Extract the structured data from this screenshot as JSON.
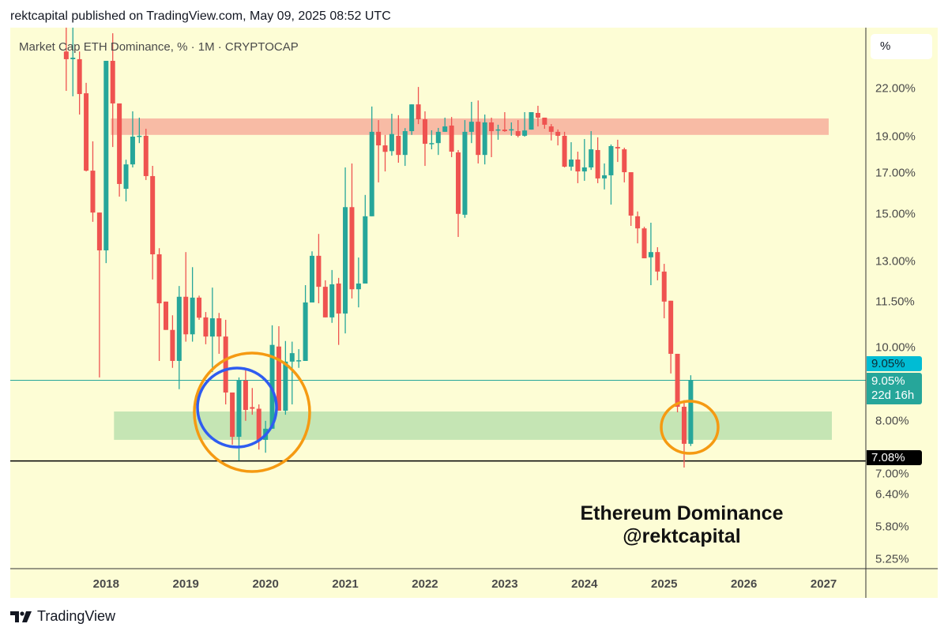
{
  "header": {
    "publish_line": "rektcapital published on TradingView.com, May 09, 2025 08:52 UTC"
  },
  "legend": {
    "symbol_title": "Market Cap ETH Dominance, % · 1M · CRYPTOCAP"
  },
  "scale_button": {
    "label": "%"
  },
  "watermark": {
    "line1": "Ethereum Dominance",
    "line2": "@rektcapital"
  },
  "footer": {
    "brand": "TradingView",
    "logo_icon": "tradingview-logo-icon"
  },
  "price_tags": {
    "last_price": "9.05%",
    "close_price": "9.05%",
    "countdown": "22d 16h",
    "support_level": "7.08%"
  },
  "colors": {
    "up": "#26a69a",
    "down": "#ef5350",
    "background": "#fdfdd5",
    "resistance_zone": "#f8bba5",
    "support_zone": "#c5e5b4",
    "circle_orange": "#f59a12",
    "circle_blue": "#2f5cf0",
    "last_price_line": "#26a69a",
    "last_price_tag": "#00bcd4"
  },
  "chart_data": {
    "type": "candlestick",
    "title": "Market Cap ETH Dominance, % · 1M · CRYPTOCAP",
    "y_scale": "log",
    "ylim": [
      5.1,
      26.5
    ],
    "y_ticks": [
      "22.00%",
      "19.00%",
      "17.00%",
      "15.00%",
      "13.00%",
      "11.50%",
      "10.00%",
      "8.00%",
      "7.00%",
      "6.40%",
      "5.80%",
      "5.25%"
    ],
    "x_ticks": [
      "2018",
      "2019",
      "2020",
      "2021",
      "2022",
      "2023",
      "2024",
      "2025",
      "2026",
      "2027"
    ],
    "x_range": [
      "2017-07",
      "2027-06"
    ],
    "grid": false,
    "start_month": "2017-07",
    "ohlc_columns": [
      "open",
      "high",
      "low",
      "close"
    ],
    "candles": [
      [
        24.62,
        26.8,
        21.84,
        24.05
      ],
      [
        24.05,
        26.5,
        21.48,
        24.16
      ],
      [
        24.05,
        24.62,
        20.32,
        21.63
      ],
      [
        21.68,
        22.38,
        17.09,
        17.13
      ],
      [
        17.13,
        18.73,
        14.66,
        15.08
      ],
      [
        15.08,
        15.08,
        9.13,
        13.44
      ],
      [
        13.44,
        23.93,
        12.93,
        23.93
      ],
      [
        23.93,
        26.02,
        18.41,
        21.02
      ],
      [
        21.02,
        21.02,
        15.83,
        16.45
      ],
      [
        16.21,
        17.71,
        15.6,
        17.46
      ],
      [
        17.46,
        20.52,
        17.3,
        19.0
      ],
      [
        18.98,
        20.13,
        18.63,
        19.05
      ],
      [
        19.05,
        19.46,
        16.65,
        16.85
      ],
      [
        16.85,
        17.38,
        12.3,
        13.28
      ],
      [
        13.28,
        13.53,
        9.6,
        11.44
      ],
      [
        11.5,
        11.5,
        10.55,
        10.55
      ],
      [
        10.55,
        11.03,
        9.4,
        9.6
      ],
      [
        9.6,
        12.06,
        8.81,
        11.67
      ],
      [
        11.67,
        13.37,
        10.18,
        10.41
      ],
      [
        10.41,
        12.77,
        10.18,
        11.64
      ],
      [
        11.64,
        11.71,
        10.88,
        10.95
      ],
      [
        10.96,
        11.14,
        10.1,
        10.34
      ],
      [
        10.34,
        12.0,
        9.28,
        10.93
      ],
      [
        10.93,
        11.11,
        9.81,
        10.34
      ],
      [
        10.34,
        10.88,
        8.41,
        8.72
      ],
      [
        8.72,
        8.72,
        7.44,
        7.62
      ],
      [
        7.62,
        9.13,
        7.09,
        9.04
      ],
      [
        9.04,
        9.38,
        8.0,
        8.27
      ],
      [
        8.34,
        8.84,
        8.15,
        8.3
      ],
      [
        8.3,
        8.41,
        7.33,
        7.55
      ],
      [
        7.55,
        8.0,
        7.26,
        7.81
      ],
      [
        7.81,
        10.7,
        7.81,
        10.08
      ],
      [
        10.03,
        10.67,
        8.25,
        8.25
      ],
      [
        8.25,
        10.2,
        8.15,
        9.58
      ],
      [
        9.58,
        10.18,
        8.41,
        9.83
      ],
      [
        9.6,
        9.95,
        9.4,
        9.62
      ],
      [
        9.6,
        12.09,
        9.6,
        11.47
      ],
      [
        11.47,
        13.4,
        11.47,
        13.22
      ],
      [
        13.22,
        14.13,
        11.44,
        12.03
      ],
      [
        12.03,
        12.27,
        10.96,
        10.96
      ],
      [
        10.96,
        12.66,
        10.78,
        12.12
      ],
      [
        12.15,
        12.36,
        10.08,
        11.09
      ],
      [
        11.09,
        17.3,
        10.44,
        15.33
      ],
      [
        15.33,
        17.51,
        11.61,
        11.94
      ],
      [
        11.94,
        13.15,
        11.3,
        12.15
      ],
      [
        12.15,
        15.91,
        12.15,
        14.91
      ],
      [
        14.91,
        20.82,
        14.91,
        19.28
      ],
      [
        19.28,
        19.98,
        16.53,
        18.5
      ],
      [
        18.5,
        19.1,
        17.09,
        18.14
      ],
      [
        18.18,
        20.37,
        17.93,
        19.15
      ],
      [
        19.05,
        20.28,
        17.55,
        17.97
      ],
      [
        17.97,
        19.5,
        17.38,
        19.32
      ],
      [
        19.32,
        20.96,
        19.1,
        20.96
      ],
      [
        20.96,
        22.1,
        19.74,
        20.03
      ],
      [
        20.03,
        20.52,
        17.38,
        18.59
      ],
      [
        18.59,
        19.37,
        18.28,
        18.63
      ],
      [
        18.63,
        19.51,
        17.97,
        19.28
      ],
      [
        19.28,
        20.13,
        19.28,
        19.6
      ],
      [
        19.65,
        20.17,
        17.85,
        18.15
      ],
      [
        18.11,
        18.24,
        14.0,
        15.02
      ],
      [
        14.98,
        19.98,
        14.84,
        19.28
      ],
      [
        19.28,
        21.12,
        18.63,
        19.88
      ],
      [
        19.88,
        21.21,
        17.51,
        17.97
      ],
      [
        17.97,
        20.32,
        17.46,
        19.84
      ],
      [
        19.84,
        20.13,
        17.85,
        19.32
      ],
      [
        19.38,
        19.7,
        18.82,
        19.42
      ],
      [
        19.41,
        20.47,
        19.28,
        19.32
      ],
      [
        19.38,
        19.84,
        19.05,
        19.43
      ],
      [
        19.32,
        19.98,
        18.96,
        19.05
      ],
      [
        19.05,
        20.47,
        19.0,
        19.36
      ],
      [
        19.41,
        20.47,
        19.41,
        20.47
      ],
      [
        20.42,
        20.87,
        19.6,
        20.13
      ],
      [
        20.13,
        20.13,
        19.46,
        19.7
      ],
      [
        19.6,
        19.74,
        18.78,
        19.28
      ],
      [
        19.28,
        19.42,
        18.5,
        19.05
      ],
      [
        19.05,
        19.28,
        17.3,
        17.34
      ],
      [
        17.34,
        18.68,
        17.13,
        17.72
      ],
      [
        17.72,
        18.15,
        16.49,
        17.09
      ],
      [
        17.09,
        18.86,
        16.61,
        17.3
      ],
      [
        17.3,
        19.32,
        17.17,
        18.28
      ],
      [
        18.24,
        18.96,
        16.49,
        16.73
      ],
      [
        16.73,
        17.51,
        16.18,
        16.89
      ],
      [
        16.89,
        18.55,
        15.45,
        18.46
      ],
      [
        18.41,
        18.82,
        17.59,
        18.33
      ],
      [
        18.28,
        18.37,
        16.53,
        17.05
      ],
      [
        17.05,
        17.05,
        14.48,
        14.94
      ],
      [
        14.91,
        15.13,
        13.73,
        14.37
      ],
      [
        14.37,
        14.44,
        13.12,
        13.12
      ],
      [
        13.16,
        14.62,
        12.09,
        13.37
      ],
      [
        13.37,
        13.57,
        12.27,
        12.6
      ],
      [
        12.6,
        12.9,
        10.93,
        11.5
      ],
      [
        11.53,
        11.53,
        9.24,
        9.81
      ],
      [
        9.81,
        9.81,
        8.21,
        8.35
      ],
      [
        8.35,
        8.52,
        6.94,
        7.46
      ],
      [
        7.46,
        9.19,
        7.41,
        9.05
      ]
    ],
    "last_price": 9.05,
    "horizontal_lines": [
      {
        "price": 7.08,
        "color": "#000000"
      },
      {
        "price": 9.05,
        "color": "#26a69a"
      }
    ],
    "zones": [
      {
        "kind": "resistance",
        "price_top": 20.08,
        "price_bottom": 19.1,
        "from": "2018-01",
        "to": "2027-02"
      },
      {
        "kind": "support",
        "price_top": 8.23,
        "price_bottom": 7.55,
        "from": "2018-01",
        "to": "2027-02"
      }
    ],
    "circles": [
      {
        "color": "orange",
        "center_month": "2019-12",
        "center_price": 8.27
      },
      {
        "color": "blue",
        "center_month": "2019-09",
        "center_price": 8.4
      },
      {
        "color": "orange",
        "center_month": "2025-05",
        "center_price": 7.83
      }
    ]
  }
}
